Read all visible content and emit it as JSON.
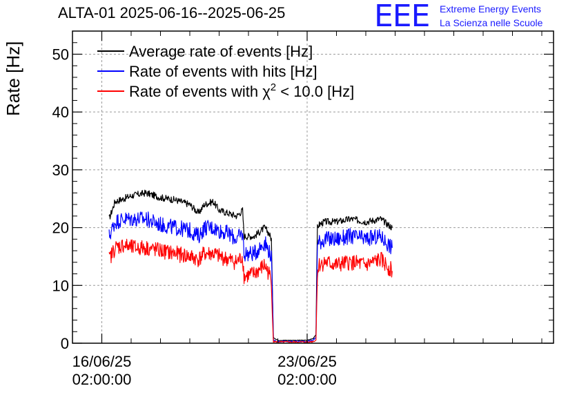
{
  "header": {
    "title": "ALTA-01 2025-06-16--2025-06-25",
    "logo_mark": "EEE",
    "logo_line1": "Extreme Energy Events",
    "logo_line2": "La Scienza nelle Scuole"
  },
  "colors": {
    "average": "#000000",
    "hits": "#0000ff",
    "chi2": "#ff0000",
    "grid": "#999999",
    "logo": "#1a1aff"
  },
  "chart_data": {
    "type": "line",
    "title": "ALTA-01 2025-06-16--2025-06-25",
    "xlabel": "",
    "ylabel": "Rate [Hz]",
    "ylim": [
      0,
      54
    ],
    "xlim": [
      -1.0,
      15.4
    ],
    "x_unit": "days after 16/06/25 02:00:00",
    "grid": true,
    "legend_position": "top-left",
    "x_ticks": [
      {
        "x": 0,
        "date": "16/06/25",
        "time": "02:00:00"
      },
      {
        "x": 7,
        "date": "23/06/25",
        "time": "02:00:00"
      }
    ],
    "y_ticks": [
      0,
      10,
      20,
      30,
      40,
      50
    ],
    "series": [
      {
        "name": "Average rate of events [Hz]",
        "color": "#000000",
        "x": [
          0.25,
          0.45,
          0.75,
          1.0,
          1.5,
          2.0,
          2.5,
          3.0,
          3.3,
          3.5,
          3.8,
          4.0,
          4.3,
          4.6,
          4.8,
          4.85,
          5.2,
          5.55,
          5.7,
          5.78,
          5.85,
          6.0,
          6.5,
          7.0,
          7.2,
          7.3,
          7.35,
          7.4,
          7.6,
          8.0,
          8.5,
          9.0,
          9.5,
          9.9
        ],
        "y": [
          21.5,
          24.5,
          25,
          25.5,
          26,
          25.2,
          24.8,
          24,
          22.5,
          24,
          24.5,
          23,
          22.5,
          22,
          23,
          18.5,
          18.5,
          20,
          19,
          18,
          1,
          0.5,
          0.5,
          0.5,
          0.8,
          1.5,
          20,
          20.5,
          21,
          21,
          21.5,
          21,
          21.5,
          20
        ]
      },
      {
        "name": "Rate of events with hits [Hz]",
        "color": "#0000ff",
        "x": [
          0.25,
          0.45,
          0.75,
          1.0,
          1.5,
          2.0,
          2.5,
          3.0,
          3.3,
          3.5,
          3.8,
          4.0,
          4.3,
          4.6,
          4.8,
          4.85,
          5.2,
          5.55,
          5.7,
          5.78,
          5.85,
          6.0,
          6.5,
          7.0,
          7.2,
          7.3,
          7.35,
          7.4,
          7.6,
          8.0,
          8.5,
          9.0,
          9.5,
          9.9
        ],
        "y": [
          18.5,
          21,
          21.5,
          21.5,
          21.5,
          20.5,
          20,
          19.5,
          18.5,
          20,
          20,
          19.5,
          19,
          18,
          19,
          15.5,
          15.5,
          17.5,
          16,
          15,
          0.5,
          0.3,
          0.3,
          0.3,
          0.5,
          1,
          17,
          17.5,
          18,
          18,
          18.5,
          18,
          18.5,
          16.5
        ]
      },
      {
        "name": "Rate of events with χ2 < 10.0 [Hz]",
        "color": "#ff0000",
        "x": [
          0.25,
          0.45,
          0.75,
          1.0,
          1.5,
          2.0,
          2.5,
          3.0,
          3.3,
          3.5,
          3.8,
          4.0,
          4.3,
          4.6,
          4.8,
          4.85,
          5.2,
          5.55,
          5.7,
          5.78,
          5.85,
          6.0,
          6.5,
          7.0,
          7.2,
          7.3,
          7.35,
          7.4,
          7.6,
          8.0,
          8.5,
          9.0,
          9.5,
          9.9
        ],
        "y": [
          14.5,
          16.5,
          17,
          16.5,
          16.5,
          16,
          15.5,
          15,
          14.5,
          15.5,
          15.5,
          15,
          14.5,
          14,
          15,
          11.5,
          12,
          13.5,
          12,
          11,
          0.3,
          0.2,
          0.2,
          0.2,
          0.3,
          0.5,
          12.5,
          13.5,
          14,
          13.5,
          14,
          13.5,
          14.5,
          12.5
        ]
      }
    ]
  },
  "legend": {
    "items": [
      {
        "label": "Average rate of events [Hz]",
        "color": "#000000"
      },
      {
        "label": "Rate of events with hits [Hz]",
        "color": "#0000ff"
      },
      {
        "label_prefix": "Rate of events with ",
        "chi": "χ",
        "sup": "2",
        "label_suffix": " < 10.0 [Hz]",
        "color": "#ff0000"
      }
    ]
  }
}
